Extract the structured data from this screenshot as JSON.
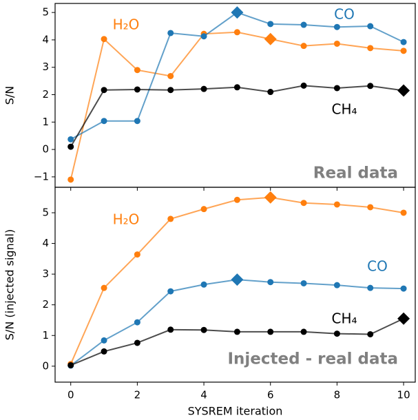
{
  "chart_data": [
    {
      "type": "line",
      "ylabel": "S/N",
      "annotation": "Real data",
      "x": [
        0,
        1,
        2,
        3,
        4,
        5,
        6,
        7,
        8,
        9,
        10
      ],
      "xlim": [
        -0.47,
        10.35
      ],
      "ylim": [
        -1.38,
        5.33
      ],
      "yticks": [
        {
          "value": -1,
          "label": "−1"
        },
        0,
        1,
        2,
        3,
        4,
        5
      ],
      "series": [
        {
          "name": "H₂O",
          "color": "#ff7f0e",
          "highlight_index": 6,
          "values": [
            -1.1,
            4.03,
            2.9,
            2.68,
            4.22,
            4.28,
            4.03,
            3.78,
            3.86,
            3.7,
            3.6
          ]
        },
        {
          "name": "CO",
          "color": "#1f77b4",
          "highlight_index": 5,
          "values": [
            0.37,
            1.04,
            1.04,
            4.25,
            4.13,
            5.0,
            4.58,
            4.55,
            4.47,
            4.5,
            3.92
          ]
        },
        {
          "name": "CH₄",
          "color": "#000000",
          "highlight_index": 10,
          "values": [
            0.1,
            2.17,
            2.19,
            2.17,
            2.21,
            2.27,
            2.1,
            2.33,
            2.24,
            2.32,
            2.15
          ]
        }
      ]
    },
    {
      "type": "line",
      "ylabel": "S/N (injected signal)",
      "xlabel": "SYSREM iteration",
      "annotation": "Injected - real data",
      "x": [
        0,
        1,
        2,
        3,
        4,
        5,
        6,
        7,
        8,
        9,
        10
      ],
      "xlim": [
        -0.47,
        10.35
      ],
      "ylim": [
        -0.52,
        5.83
      ],
      "xticks": [
        0,
        2,
        4,
        6,
        8,
        10
      ],
      "yticks": [
        0,
        1,
        2,
        3,
        4,
        5
      ],
      "series": [
        {
          "name": "H₂O",
          "color": "#ff7f0e",
          "highlight_index": 6,
          "values": [
            0.07,
            2.55,
            3.64,
            4.8,
            5.12,
            5.42,
            5.5,
            5.32,
            5.27,
            5.18,
            5.0
          ]
        },
        {
          "name": "CO",
          "color": "#1f77b4",
          "highlight_index": 5,
          "values": [
            0.02,
            0.84,
            1.43,
            2.44,
            2.66,
            2.82,
            2.74,
            2.7,
            2.64,
            2.55,
            2.53
          ]
        },
        {
          "name": "CH₄",
          "color": "#000000",
          "highlight_index": 10,
          "values": [
            0.03,
            0.48,
            0.76,
            1.19,
            1.18,
            1.12,
            1.12,
            1.12,
            1.06,
            1.04,
            1.55
          ]
        }
      ]
    }
  ]
}
